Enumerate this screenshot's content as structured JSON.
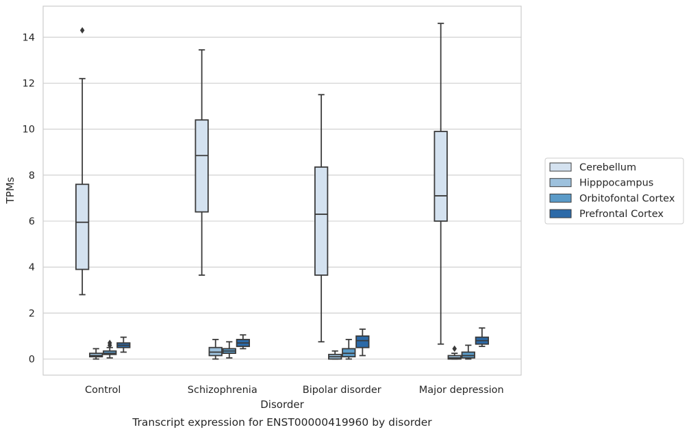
{
  "chart_data": {
    "type": "box",
    "title": "",
    "caption": "Transcript expression for ENST00000419960 by disorder",
    "xlabel": "Disorder",
    "ylabel": "TPMs",
    "ylim": [
      -0.7,
      15.35
    ],
    "yticks": [
      0,
      2,
      4,
      6,
      8,
      10,
      12,
      14
    ],
    "categories": [
      "Control",
      "Schizophrenia",
      "Bipolar disorder",
      "Major depression"
    ],
    "grid": "horizontal",
    "legend_position": "right",
    "series": [
      {
        "name": "Cerebellum",
        "color": "#d4e2f0",
        "boxes": [
          {
            "whislo": 2.8,
            "q1": 3.9,
            "med": 5.95,
            "q3": 7.6,
            "whishi": 12.2,
            "fliers": [
              14.3
            ]
          },
          {
            "whislo": 3.65,
            "q1": 6.4,
            "med": 8.85,
            "q3": 10.4,
            "whishi": 13.45,
            "fliers": []
          },
          {
            "whislo": 0.75,
            "q1": 3.65,
            "med": 6.3,
            "q3": 8.35,
            "whishi": 11.5,
            "fliers": []
          },
          {
            "whislo": 0.65,
            "q1": 6.0,
            "med": 7.1,
            "q3": 9.9,
            "whishi": 14.6,
            "fliers": []
          }
        ]
      },
      {
        "name": "Hipppocampus",
        "color": "#9dc1dd",
        "boxes": [
          {
            "whislo": 0.0,
            "q1": 0.1,
            "med": 0.15,
            "q3": 0.25,
            "whishi": 0.45,
            "fliers": []
          },
          {
            "whislo": 0.0,
            "q1": 0.15,
            "med": 0.3,
            "q3": 0.5,
            "whishi": 0.85,
            "fliers": []
          },
          {
            "whislo": 0.0,
            "q1": 0.0,
            "med": 0.1,
            "q3": 0.2,
            "whishi": 0.35,
            "fliers": []
          },
          {
            "whislo": 0.0,
            "q1": 0.0,
            "med": 0.05,
            "q3": 0.15,
            "whishi": 0.25,
            "fliers": [
              0.45
            ]
          }
        ]
      },
      {
        "name": "Orbitofontal Cortex",
        "color": "#5b9bc8",
        "boxes": [
          {
            "whislo": 0.05,
            "q1": 0.2,
            "med": 0.25,
            "q3": 0.35,
            "whishi": 0.5,
            "fliers": [
              0.6,
              0.7
            ]
          },
          {
            "whislo": 0.05,
            "q1": 0.25,
            "med": 0.35,
            "q3": 0.45,
            "whishi": 0.75,
            "fliers": []
          },
          {
            "whislo": 0.0,
            "q1": 0.1,
            "med": 0.25,
            "q3": 0.45,
            "whishi": 0.85,
            "fliers": []
          },
          {
            "whislo": 0.0,
            "q1": 0.05,
            "med": 0.15,
            "q3": 0.3,
            "whishi": 0.6,
            "fliers": []
          }
        ]
      },
      {
        "name": "Prefrontal Cortex",
        "color": "#2c6aa8",
        "boxes": [
          {
            "whislo": 0.3,
            "q1": 0.5,
            "med": 0.6,
            "q3": 0.7,
            "whishi": 0.95,
            "fliers": []
          },
          {
            "whislo": 0.45,
            "q1": 0.55,
            "med": 0.7,
            "q3": 0.85,
            "whishi": 1.05,
            "fliers": []
          },
          {
            "whislo": 0.15,
            "q1": 0.5,
            "med": 0.8,
            "q3": 1.0,
            "whishi": 1.3,
            "fliers": []
          },
          {
            "whislo": 0.55,
            "q1": 0.65,
            "med": 0.8,
            "q3": 0.95,
            "whishi": 1.35,
            "fliers": []
          }
        ]
      }
    ]
  }
}
